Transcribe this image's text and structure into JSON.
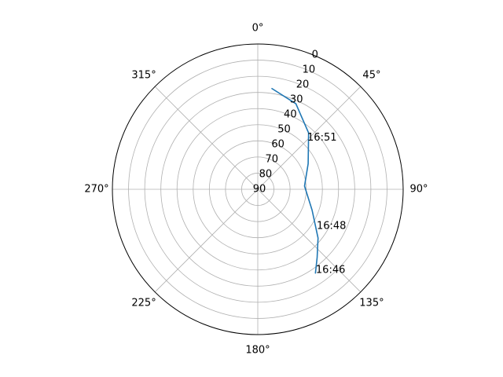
{
  "chart_data": {
    "type": "line",
    "projection": "polar",
    "theta_zero": "N",
    "theta_direction": "clockwise",
    "angle_ticks": [
      {
        "deg": 0,
        "label": "0°"
      },
      {
        "deg": 45,
        "label": "45°"
      },
      {
        "deg": 90,
        "label": "90°"
      },
      {
        "deg": 135,
        "label": "135°"
      },
      {
        "deg": 180,
        "label": "180°"
      },
      {
        "deg": 225,
        "label": "225°"
      },
      {
        "deg": 270,
        "label": "270°"
      },
      {
        "deg": 315,
        "label": "315°"
      }
    ],
    "radial_ticks": [
      {
        "value": 0,
        "label": "0"
      },
      {
        "value": 10,
        "label": "10"
      },
      {
        "value": 20,
        "label": "20"
      },
      {
        "value": 30,
        "label": "30"
      },
      {
        "value": 40,
        "label": "40"
      },
      {
        "value": 50,
        "label": "50"
      },
      {
        "value": 60,
        "label": "60"
      },
      {
        "value": 70,
        "label": "70"
      },
      {
        "value": 80,
        "label": "80"
      },
      {
        "value": 90,
        "label": "90"
      }
    ],
    "rlim": [
      90,
      0
    ],
    "grid": true,
    "series": [
      {
        "color": "#1f77b4",
        "points": [
          {
            "az": 145.5,
            "el": 27
          },
          {
            "az": 139.0,
            "el": 34
          },
          {
            "az": 129.0,
            "el": 42
          },
          {
            "az": 111.0,
            "el": 54
          },
          {
            "az": 86.0,
            "el": 61
          },
          {
            "az": 63.0,
            "el": 55
          },
          {
            "az": 42.0,
            "el": 43
          },
          {
            "az": 24.0,
            "el": 32
          },
          {
            "az": 8.0,
            "el": 27
          }
        ]
      }
    ],
    "annotations": [
      {
        "text": "16:46",
        "az": 145.2,
        "el": 27
      },
      {
        "text": "16:48",
        "az": 124.0,
        "el": 46
      },
      {
        "text": "16:51",
        "az": 45.5,
        "el": 47
      }
    ]
  }
}
